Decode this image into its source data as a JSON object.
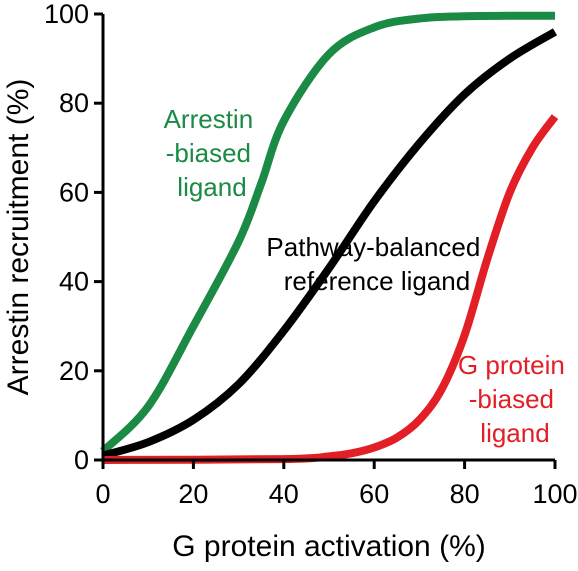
{
  "chart_data": {
    "type": "line",
    "title": "",
    "xlabel": "G protein activation (%)",
    "ylabel": "Arrestin recruitment (%)",
    "xlim": [
      0,
      100
    ],
    "ylim": [
      0,
      100
    ],
    "xticks": [
      "0",
      "20",
      "40",
      "60",
      "80",
      "100"
    ],
    "yticks": [
      "0",
      "20",
      "40",
      "60",
      "80",
      "100"
    ],
    "grid": false,
    "series": [
      {
        "color": "#1a8a45",
        "x": [
          0,
          10,
          20,
          30,
          35,
          40,
          50,
          60,
          70,
          80,
          90,
          100
        ],
        "y": [
          2,
          12,
          30,
          49,
          62,
          76,
          91,
          97,
          99,
          99.5,
          99.6,
          99.6
        ]
      },
      {
        "color": "#000000",
        "x": [
          0,
          10,
          20,
          30,
          40,
          50,
          60,
          70,
          80,
          90,
          100
        ],
        "y": [
          1,
          4,
          9,
          17,
          29,
          43,
          58,
          71,
          82,
          90,
          96
        ]
      },
      {
        "color": "#e21f26",
        "x": [
          0,
          40,
          50,
          55,
          60,
          65,
          70,
          75,
          80,
          85,
          90,
          95,
          100
        ],
        "y": [
          0,
          0.2,
          0.8,
          1.5,
          2.8,
          5,
          9,
          16,
          28,
          45,
          60,
          70,
          77
        ]
      }
    ],
    "annotations": [
      {
        "lines": [
          "Arrestin",
          "-biased",
          "ligand"
        ],
        "color": "#1a8a45"
      },
      {
        "lines": [
          "Pathway-balanced",
          "reference ligand"
        ],
        "color": "#000000"
      },
      {
        "lines": [
          "G protein",
          "-biased",
          "ligand"
        ],
        "color": "#e21f26"
      }
    ]
  }
}
